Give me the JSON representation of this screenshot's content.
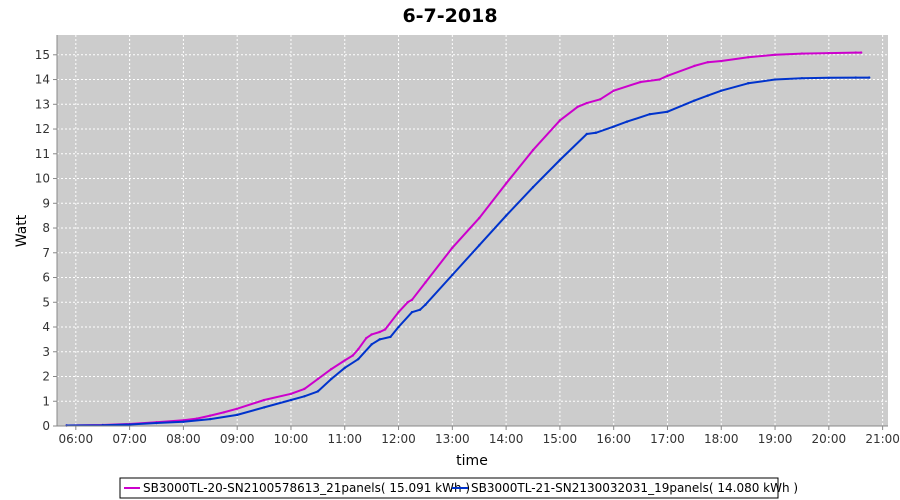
{
  "chart_data": {
    "type": "line",
    "title": "6-7-2018",
    "xlabel": "time",
    "ylabel": "Watt",
    "xlim": [
      5.65,
      21.1
    ],
    "ylim": [
      0,
      15.8
    ],
    "x_ticks": [
      "06:00",
      "07:00",
      "08:00",
      "09:00",
      "10:00",
      "11:00",
      "12:00",
      "13:00",
      "14:00",
      "15:00",
      "16:00",
      "17:00",
      "18:00",
      "19:00",
      "20:00",
      "21:00"
    ],
    "y_ticks": [
      0,
      1,
      2,
      3,
      4,
      5,
      6,
      7,
      8,
      9,
      10,
      11,
      12,
      13,
      14,
      15
    ],
    "grid": true,
    "plot_background": "#cccccc",
    "legend_position": "bottom",
    "series": [
      {
        "name": "SB3000TL-20-SN2100578613_21panels( 15.091 kWh )",
        "color": "#cc00cc",
        "x": [
          5.83,
          6.5,
          7.0,
          7.5,
          8.0,
          8.25,
          8.5,
          8.75,
          9.0,
          9.5,
          10.0,
          10.25,
          10.5,
          10.75,
          11.0,
          11.15,
          11.25,
          11.4,
          11.5,
          11.65,
          11.75,
          12.0,
          12.17,
          12.25,
          12.5,
          13.0,
          13.5,
          14.0,
          14.5,
          15.0,
          15.33,
          15.5,
          15.75,
          16.0,
          16.5,
          16.85,
          17.0,
          17.5,
          17.75,
          18.0,
          18.5,
          19.0,
          19.5,
          20.0,
          20.5,
          20.6
        ],
        "y": [
          0.02,
          0.04,
          0.08,
          0.15,
          0.23,
          0.3,
          0.42,
          0.55,
          0.7,
          1.05,
          1.3,
          1.5,
          1.9,
          2.3,
          2.65,
          2.85,
          3.1,
          3.55,
          3.7,
          3.8,
          3.9,
          4.6,
          5.0,
          5.1,
          5.8,
          7.2,
          8.4,
          9.8,
          11.15,
          12.35,
          12.9,
          13.05,
          13.2,
          13.55,
          13.9,
          14.0,
          14.15,
          14.55,
          14.7,
          14.75,
          14.9,
          15.0,
          15.05,
          15.07,
          15.09,
          15.09
        ]
      },
      {
        "name": "SB3000TL-21-SN2130032031_19panels( 14.080 kWh )",
        "color": "#0033cc",
        "x": [
          5.83,
          6.5,
          7.0,
          7.5,
          8.0,
          8.5,
          9.0,
          9.5,
          10.0,
          10.25,
          10.5,
          10.75,
          11.0,
          11.25,
          11.5,
          11.65,
          11.85,
          12.0,
          12.25,
          12.4,
          12.5,
          13.0,
          13.5,
          14.0,
          14.5,
          15.0,
          15.5,
          15.67,
          16.0,
          16.25,
          16.67,
          17.0,
          17.5,
          17.75,
          18.0,
          18.5,
          19.0,
          19.5,
          20.0,
          20.5,
          20.75
        ],
        "y": [
          0.02,
          0.03,
          0.06,
          0.12,
          0.17,
          0.28,
          0.45,
          0.75,
          1.05,
          1.2,
          1.4,
          1.9,
          2.35,
          2.7,
          3.3,
          3.5,
          3.6,
          4.0,
          4.6,
          4.7,
          4.9,
          6.1,
          7.3,
          8.5,
          9.65,
          10.75,
          11.8,
          11.85,
          12.1,
          12.3,
          12.6,
          12.7,
          13.15,
          13.35,
          13.55,
          13.85,
          14.0,
          14.05,
          14.07,
          14.08,
          14.08
        ]
      }
    ]
  }
}
